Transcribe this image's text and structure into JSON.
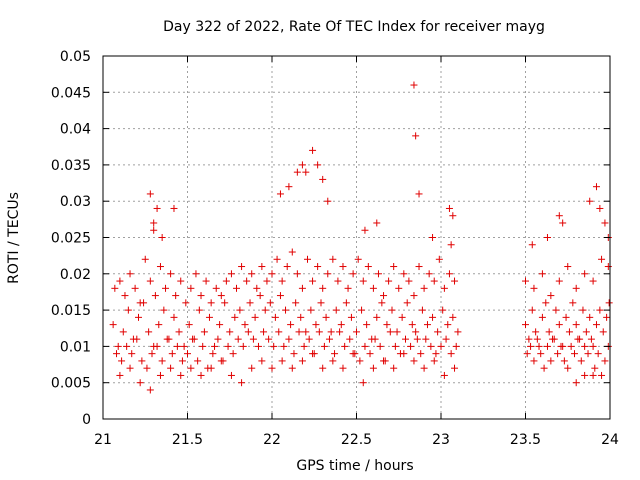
{
  "chart_data": {
    "type": "scatter",
    "title": "Day 322 of 2022, Rate Of TEC Index for receiver mayg",
    "xlabel": "GPS time / hours",
    "ylabel": "ROTI / TECUs",
    "xlim": [
      21,
      24
    ],
    "ylim": [
      0,
      0.05
    ],
    "x_ticks": [
      21,
      21.5,
      22,
      22.5,
      23,
      23.5,
      24
    ],
    "x_tick_labels": [
      "21",
      "21.5",
      "22",
      "22.5",
      "23",
      "23.5",
      "24"
    ],
    "y_ticks": [
      0,
      0.005,
      0.01,
      0.015,
      0.02,
      0.025,
      0.03,
      0.035,
      0.04,
      0.045,
      0.05
    ],
    "y_tick_labels": [
      "0",
      "0.005",
      "0.01",
      "0.015",
      "0.02",
      "0.025",
      "0.03",
      "0.035",
      "0.04",
      "0.045",
      "0.05"
    ],
    "grid": true,
    "marker": "plus",
    "color": "#e00000",
    "series": [
      {
        "name": "ROTI",
        "x": [
          21.06,
          21.09,
          21.12,
          21.15,
          21.18,
          21.21,
          21.24,
          21.27,
          21.3,
          21.33,
          21.36,
          21.39,
          21.42,
          21.45,
          21.48,
          21.51,
          21.54,
          21.57,
          21.6,
          21.63,
          21.66,
          21.69,
          21.72,
          21.75,
          21.78,
          21.81,
          21.84,
          21.87,
          21.9,
          21.93,
          21.96,
          21.99,
          22.02,
          22.05,
          22.08,
          22.11,
          22.14,
          22.17,
          22.2,
          22.23,
          22.26,
          22.29,
          22.32,
          22.35,
          22.38,
          22.41,
          22.44,
          22.47,
          22.5,
          22.53,
          22.56,
          22.59,
          22.62,
          22.65,
          22.68,
          22.71,
          22.74,
          22.77,
          22.8,
          22.83,
          22.86,
          22.89,
          22.92,
          22.95,
          22.98,
          23.01,
          23.04,
          23.07,
          23.1,
          21.08,
          21.11,
          21.14,
          21.17,
          21.2,
          21.23,
          21.26,
          21.29,
          21.32,
          21.35,
          21.38,
          21.41,
          21.44,
          21.47,
          21.5,
          21.53,
          21.56,
          21.59,
          21.62,
          21.65,
          21.68,
          21.71,
          21.74,
          21.77,
          21.8,
          21.83,
          21.86,
          21.89,
          21.92,
          21.95,
          21.98,
          22.01,
          22.04,
          22.07,
          22.1,
          22.13,
          22.16,
          22.19,
          22.22,
          22.25,
          22.28,
          22.31,
          22.34,
          22.37,
          22.4,
          22.43,
          22.46,
          22.49,
          22.52,
          22.55,
          22.58,
          22.61,
          22.64,
          22.67,
          22.7,
          22.73,
          22.76,
          22.79,
          22.82,
          22.85,
          22.88,
          22.91,
          22.94,
          22.97,
          23.0,
          23.03,
          23.06,
          23.09,
          21.07,
          21.1,
          21.13,
          21.16,
          21.19,
          21.22,
          21.25,
          21.28,
          21.31,
          21.34,
          21.37,
          21.4,
          21.43,
          21.46,
          21.49,
          21.52,
          21.55,
          21.58,
          21.61,
          21.64,
          21.67,
          21.7,
          21.73,
          21.76,
          21.79,
          21.82,
          21.85,
          21.88,
          21.91,
          21.94,
          21.97,
          22.0,
          22.03,
          22.06,
          22.09,
          22.12,
          22.15,
          22.18,
          22.21,
          22.24,
          22.27,
          22.3,
          22.33,
          22.36,
          22.39,
          22.42,
          22.45,
          22.48,
          22.51,
          22.54,
          22.57,
          22.6,
          22.63,
          22.66,
          22.69,
          22.72,
          22.75,
          22.78,
          22.81,
          22.84,
          22.87,
          22.9,
          22.93,
          22.96,
          22.99,
          23.02,
          23.05,
          23.08,
          21.1,
          21.16,
          21.22,
          21.28,
          21.34,
          21.4,
          21.46,
          21.52,
          21.58,
          21.64,
          21.7,
          21.76,
          21.82,
          21.88,
          21.94,
          22.0,
          22.06,
          22.12,
          22.18,
          22.24,
          22.3,
          22.36,
          22.42,
          22.48,
          22.54,
          22.6,
          22.66,
          22.72,
          22.78,
          22.84,
          22.9,
          22.96,
          23.02,
          23.08,
          21.28,
          21.3,
          21.32,
          21.42,
          22.05,
          22.1,
          22.15,
          22.18,
          22.2,
          22.24,
          22.27,
          22.3,
          22.33,
          22.84,
          22.85,
          22.87,
          23.05,
          23.07,
          21.3,
          21.35,
          22.55,
          22.62,
          22.95,
          23.06,
          23.5,
          23.52,
          23.54,
          23.56,
          23.58,
          23.6,
          23.62,
          23.64,
          23.66,
          23.68,
          23.7,
          23.72,
          23.74,
          23.76,
          23.78,
          23.8,
          23.82,
          23.84,
          23.86,
          23.88,
          23.9,
          23.92,
          23.94,
          23.96,
          23.98,
          23.995,
          23.51,
          23.53,
          23.55,
          23.57,
          23.59,
          23.61,
          23.63,
          23.65,
          23.67,
          23.69,
          23.71,
          23.73,
          23.75,
          23.77,
          23.79,
          23.81,
          23.83,
          23.85,
          23.87,
          23.89,
          23.91,
          23.93,
          23.95,
          23.97,
          23.99,
          23.5,
          23.55,
          23.6,
          23.65,
          23.7,
          23.75,
          23.8,
          23.85,
          23.9,
          23.95,
          23.99,
          23.54,
          23.63,
          23.7,
          23.72,
          23.88,
          23.92,
          23.94,
          23.97,
          23.99,
          23.8,
          23.85,
          23.9
        ],
        "y": [
          0.013,
          0.01,
          0.012,
          0.015,
          0.011,
          0.014,
          0.016,
          0.012,
          0.01,
          0.013,
          0.015,
          0.011,
          0.014,
          0.012,
          0.01,
          0.013,
          0.011,
          0.015,
          0.012,
          0.014,
          0.01,
          0.013,
          0.016,
          0.012,
          0.014,
          0.015,
          0.013,
          0.016,
          0.014,
          0.017,
          0.015,
          0.016,
          0.014,
          0.017,
          0.015,
          0.013,
          0.016,
          0.014,
          0.012,
          0.015,
          0.013,
          0.016,
          0.014,
          0.012,
          0.015,
          0.013,
          0.016,
          0.014,
          0.012,
          0.015,
          0.013,
          0.011,
          0.014,
          0.016,
          0.013,
          0.015,
          0.012,
          0.014,
          0.016,
          0.013,
          0.011,
          0.015,
          0.013,
          0.014,
          0.012,
          0.015,
          0.013,
          0.014,
          0.012,
          0.009,
          0.008,
          0.01,
          0.009,
          0.011,
          0.008,
          0.007,
          0.009,
          0.01,
          0.008,
          0.011,
          0.009,
          0.01,
          0.008,
          0.009,
          0.011,
          0.008,
          0.01,
          0.007,
          0.009,
          0.011,
          0.008,
          0.01,
          0.009,
          0.011,
          0.01,
          0.012,
          0.011,
          0.01,
          0.012,
          0.011,
          0.01,
          0.012,
          0.01,
          0.011,
          0.009,
          0.012,
          0.01,
          0.011,
          0.009,
          0.012,
          0.01,
          0.011,
          0.009,
          0.012,
          0.01,
          0.011,
          0.009,
          0.008,
          0.01,
          0.009,
          0.011,
          0.01,
          0.008,
          0.012,
          0.01,
          0.009,
          0.011,
          0.01,
          0.012,
          0.009,
          0.011,
          0.01,
          0.009,
          0.01,
          0.011,
          0.009,
          0.01,
          0.018,
          0.019,
          0.017,
          0.02,
          0.018,
          0.016,
          0.022,
          0.019,
          0.017,
          0.021,
          0.018,
          0.02,
          0.017,
          0.019,
          0.016,
          0.018,
          0.02,
          0.017,
          0.019,
          0.016,
          0.018,
          0.017,
          0.019,
          0.02,
          0.018,
          0.021,
          0.019,
          0.02,
          0.018,
          0.021,
          0.019,
          0.02,
          0.022,
          0.019,
          0.021,
          0.023,
          0.02,
          0.018,
          0.022,
          0.019,
          0.021,
          0.018,
          0.02,
          0.022,
          0.019,
          0.021,
          0.018,
          0.02,
          0.022,
          0.019,
          0.021,
          0.018,
          0.02,
          0.017,
          0.019,
          0.021,
          0.018,
          0.02,
          0.019,
          0.017,
          0.021,
          0.018,
          0.02,
          0.019,
          0.022,
          0.018,
          0.02,
          0.019,
          0.006,
          0.007,
          0.005,
          0.004,
          0.006,
          0.007,
          0.006,
          0.007,
          0.006,
          0.007,
          0.008,
          0.006,
          0.005,
          0.007,
          0.008,
          0.007,
          0.008,
          0.007,
          0.008,
          0.009,
          0.007,
          0.008,
          0.007,
          0.009,
          0.005,
          0.007,
          0.008,
          0.007,
          0.009,
          0.008,
          0.007,
          0.008,
          0.006,
          0.007,
          0.031,
          0.027,
          0.029,
          0.029,
          0.031,
          0.032,
          0.034,
          0.035,
          0.034,
          0.037,
          0.035,
          0.033,
          0.03,
          0.046,
          0.039,
          0.031,
          0.029,
          0.028,
          0.026,
          0.025,
          0.026,
          0.027,
          0.025,
          0.024,
          0.013,
          0.011,
          0.015,
          0.012,
          0.01,
          0.014,
          0.016,
          0.012,
          0.011,
          0.015,
          0.013,
          0.01,
          0.014,
          0.012,
          0.016,
          0.013,
          0.011,
          0.015,
          0.012,
          0.014,
          0.01,
          0.013,
          0.015,
          0.012,
          0.014,
          0.016,
          0.009,
          0.01,
          0.008,
          0.011,
          0.009,
          0.007,
          0.01,
          0.008,
          0.011,
          0.009,
          0.01,
          0.008,
          0.007,
          0.01,
          0.009,
          0.011,
          0.008,
          0.01,
          0.009,
          0.011,
          0.007,
          0.009,
          0.006,
          0.008,
          0.01,
          0.019,
          0.018,
          0.02,
          0.017,
          0.019,
          0.021,
          0.018,
          0.02,
          0.019,
          0.022,
          0.021,
          0.024,
          0.025,
          0.028,
          0.027,
          0.03,
          0.032,
          0.029,
          0.027,
          0.025,
          0.005,
          0.006,
          0.006
        ]
      }
    ]
  }
}
